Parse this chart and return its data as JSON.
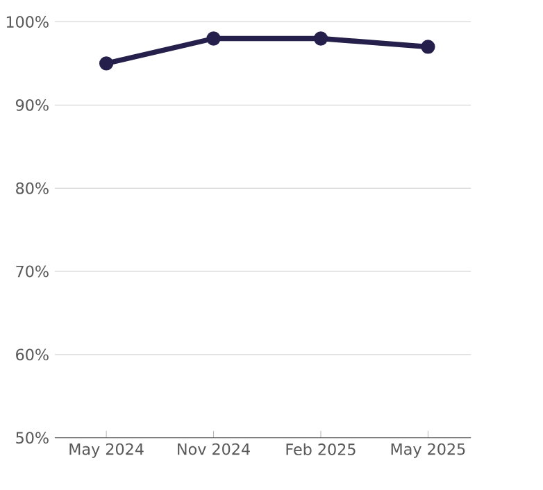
{
  "chart_data": {
    "type": "line",
    "categories": [
      "May 2024",
      "Nov 2024",
      "Feb 2025",
      "May 2025"
    ],
    "series": [
      {
        "color": "#251f4b",
        "values": [
          95,
          98,
          98,
          97
        ]
      }
    ],
    "ylim": [
      50,
      100
    ],
    "yticks": [
      {
        "value": 50,
        "label": "50%"
      },
      {
        "value": 60,
        "label": "60%"
      },
      {
        "value": 70,
        "label": "70%"
      },
      {
        "value": 80,
        "label": "80%"
      },
      {
        "value": 90,
        "label": "90%"
      },
      {
        "value": 100,
        "label": "100%"
      }
    ],
    "grid": "y",
    "marker": "circle",
    "line_style": "solid"
  }
}
